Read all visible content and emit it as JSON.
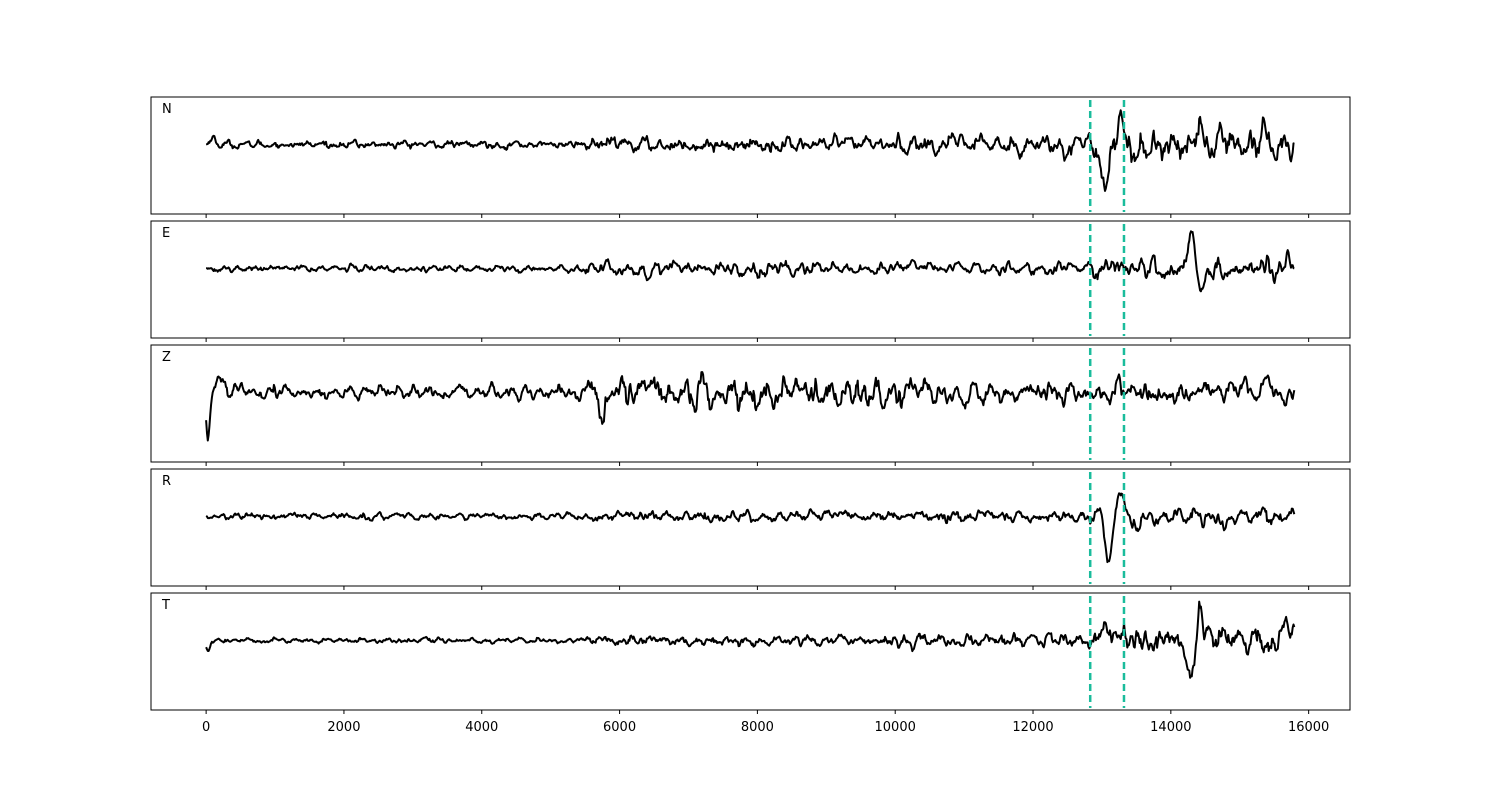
{
  "chart_data": {
    "type": "line",
    "title": "",
    "xlabel": "",
    "ylabel": "",
    "xlim": [
      -800,
      16600
    ],
    "x_ticks": [
      0,
      2000,
      4000,
      6000,
      8000,
      10000,
      12000,
      14000,
      16000
    ],
    "sample_count": 15800,
    "marker_color": "#1ABC9C",
    "markers": [
      12830,
      13320
    ],
    "channels": [
      {
        "label": "N",
        "amplitude_segments": [
          [
            0,
            5500,
            0.12
          ],
          [
            5500,
            9800,
            0.22
          ],
          [
            9800,
            12800,
            0.3
          ],
          [
            12800,
            15800,
            0.5
          ]
        ],
        "events": [
          [
            100,
            0.25,
            40
          ],
          [
            13050,
            -1.2,
            70
          ],
          [
            13260,
            0.75,
            70
          ],
          [
            13500,
            -0.6,
            60
          ],
          [
            14400,
            0.55,
            70
          ],
          [
            15350,
            0.5,
            60
          ]
        ]
      },
      {
        "label": "E",
        "amplitude_segments": [
          [
            0,
            5500,
            0.1
          ],
          [
            5500,
            9000,
            0.22
          ],
          [
            9000,
            12800,
            0.16
          ],
          [
            12800,
            15800,
            0.3
          ]
        ],
        "events": [
          [
            6400,
            -0.3,
            50
          ],
          [
            6800,
            0.25,
            50
          ],
          [
            13150,
            0.25,
            60
          ],
          [
            14300,
            1.1,
            60
          ],
          [
            14450,
            -0.85,
            60
          ],
          [
            15700,
            0.5,
            60
          ]
        ]
      },
      {
        "label": "Z",
        "amplitude_segments": [
          [
            0,
            5500,
            0.2
          ],
          [
            5500,
            10300,
            0.42
          ],
          [
            10300,
            12800,
            0.32
          ],
          [
            12800,
            15800,
            0.3
          ]
        ],
        "events": [
          [
            25,
            -1.3,
            40
          ],
          [
            200,
            0.35,
            100
          ],
          [
            5750,
            -0.75,
            50
          ],
          [
            6350,
            0.6,
            50
          ],
          [
            9800,
            -0.5,
            50
          ],
          [
            15400,
            0.55,
            50
          ]
        ]
      },
      {
        "label": "R",
        "amplitude_segments": [
          [
            0,
            5500,
            0.1
          ],
          [
            5500,
            9800,
            0.16
          ],
          [
            9800,
            12800,
            0.18
          ],
          [
            12800,
            15800,
            0.28
          ]
        ],
        "events": [
          [
            13100,
            -1.2,
            70
          ],
          [
            13280,
            0.85,
            70
          ],
          [
            13500,
            -0.4,
            70
          ],
          [
            14800,
            -0.4,
            60
          ]
        ]
      },
      {
        "label": "T",
        "amplitude_segments": [
          [
            0,
            5500,
            0.08
          ],
          [
            5500,
            9800,
            0.15
          ],
          [
            9800,
            12800,
            0.2
          ],
          [
            12800,
            15800,
            0.4
          ]
        ],
        "events": [
          [
            30,
            -0.3,
            40
          ],
          [
            13050,
            0.55,
            60
          ],
          [
            13300,
            0.4,
            60
          ],
          [
            14300,
            -1.2,
            60
          ],
          [
            14420,
            0.8,
            60
          ],
          [
            15500,
            -0.5,
            60
          ],
          [
            15640,
            0.45,
            60
          ]
        ]
      }
    ]
  }
}
